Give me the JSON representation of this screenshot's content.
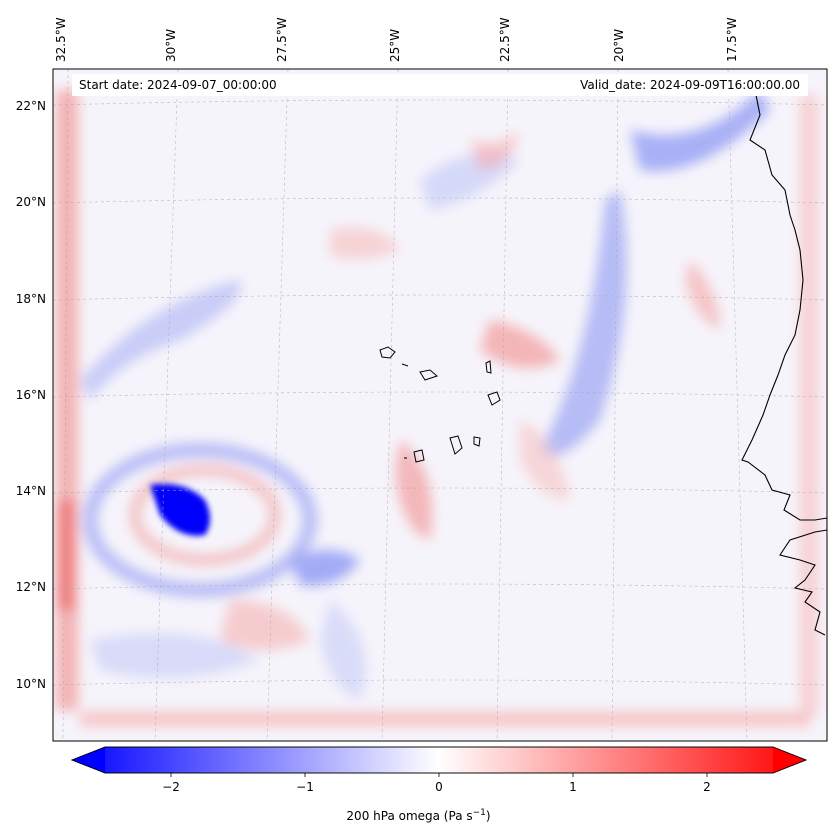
{
  "map": {
    "header_left": "Start date: 2024-09-07_00:00:00",
    "header_right": "Valid_date: 2024-09-09T16:00:00.00",
    "lon_labels": [
      "32.5°W",
      "30°W",
      "27.5°W",
      "25°W",
      "22.5°W",
      "20°W",
      "17.5°W"
    ],
    "lat_labels": [
      "22°N",
      "20°N",
      "18°N",
      "16°N",
      "14°N",
      "12°N",
      "10°N"
    ],
    "colormap": [
      "#0000ff",
      "#ffffff",
      "#ff0000"
    ],
    "coastline_color": "#000000"
  },
  "colorbar": {
    "ticks": [
      "−2",
      "−1",
      "0",
      "1",
      "2"
    ],
    "tick_values": [
      -2,
      -1,
      0,
      1,
      2
    ],
    "range": [
      -2.75,
      2.75
    ],
    "label": "200 hPa omega (Pa s",
    "label_sup": "−1",
    "label_tail": ")"
  }
}
